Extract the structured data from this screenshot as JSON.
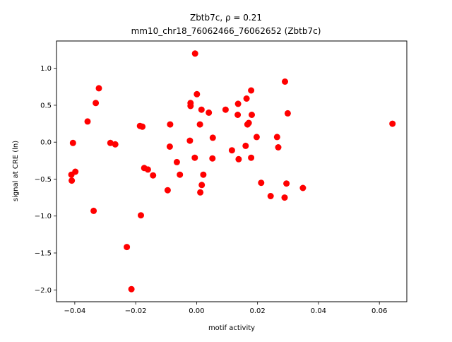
{
  "chart_data": {
    "type": "scatter",
    "title_line1": "Zbtb7c, ρ = 0.21",
    "title_line2": "mm10_chr18_76062466_76062652 (Zbtb7c)",
    "xlabel": "motif activity",
    "ylabel": "signal at CRE (ln)",
    "xlim": [
      -0.046,
      0.069
    ],
    "ylim": [
      -2.16,
      1.37
    ],
    "xticks": [
      -0.04,
      -0.02,
      0.0,
      0.02,
      0.04,
      0.06
    ],
    "xtick_labels": [
      "−0.04",
      "−0.02",
      "0.00",
      "0.02",
      "0.04",
      "0.06"
    ],
    "yticks": [
      -2.0,
      -1.5,
      -1.0,
      -0.5,
      0.0,
      0.5,
      1.0
    ],
    "ytick_labels": [
      "−2.0",
      "−1.5",
      "−1.0",
      "−0.5",
      "0.0",
      "0.5",
      "1.0"
    ],
    "grid": false,
    "marker_color": "#ff0000",
    "points": [
      {
        "x": -0.0406,
        "y": -0.01
      },
      {
        "x": -0.0411,
        "y": -0.44
      },
      {
        "x": -0.041,
        "y": -0.52
      },
      {
        "x": -0.0398,
        "y": -0.4
      },
      {
        "x": -0.0358,
        "y": 0.28
      },
      {
        "x": -0.0338,
        "y": -0.93
      },
      {
        "x": -0.0331,
        "y": 0.53
      },
      {
        "x": -0.0321,
        "y": 0.73
      },
      {
        "x": -0.0283,
        "y": -0.01
      },
      {
        "x": -0.0267,
        "y": -0.03
      },
      {
        "x": -0.0229,
        "y": -1.42
      },
      {
        "x": -0.0214,
        "y": -1.99
      },
      {
        "x": -0.0186,
        "y": 0.22
      },
      {
        "x": -0.0178,
        "y": 0.21
      },
      {
        "x": -0.0183,
        "y": -0.99
      },
      {
        "x": -0.0172,
        "y": -0.35
      },
      {
        "x": -0.016,
        "y": -0.37
      },
      {
        "x": -0.0143,
        "y": -0.45
      },
      {
        "x": -0.0095,
        "y": -0.65
      },
      {
        "x": -0.0087,
        "y": 0.24
      },
      {
        "x": -0.0088,
        "y": -0.06
      },
      {
        "x": -0.0065,
        "y": -0.27
      },
      {
        "x": -0.0055,
        "y": -0.44
      },
      {
        "x": -0.002,
        "y": 0.53
      },
      {
        "x": -0.002,
        "y": 0.49
      },
      {
        "x": -0.0022,
        "y": 0.02
      },
      {
        "x": -0.0005,
        "y": 1.2
      },
      {
        "x": 0.0001,
        "y": 0.65
      },
      {
        "x": 0.0011,
        "y": 0.24
      },
      {
        "x": 0.0016,
        "y": 0.44
      },
      {
        "x": -0.0006,
        "y": -0.21
      },
      {
        "x": 0.0022,
        "y": -0.44
      },
      {
        "x": 0.0017,
        "y": -0.58
      },
      {
        "x": 0.0012,
        "y": -0.68
      },
      {
        "x": 0.004,
        "y": 0.4
      },
      {
        "x": 0.0053,
        "y": 0.06
      },
      {
        "x": 0.0052,
        "y": -0.22
      },
      {
        "x": 0.0095,
        "y": 0.44
      },
      {
        "x": 0.0116,
        "y": -0.11
      },
      {
        "x": 0.0136,
        "y": 0.52
      },
      {
        "x": 0.0135,
        "y": 0.37
      },
      {
        "x": 0.0138,
        "y": -0.23
      },
      {
        "x": 0.0164,
        "y": 0.59
      },
      {
        "x": 0.0179,
        "y": 0.7
      },
      {
        "x": 0.0181,
        "y": 0.37
      },
      {
        "x": 0.0171,
        "y": 0.26
      },
      {
        "x": 0.0167,
        "y": 0.24
      },
      {
        "x": 0.0161,
        "y": -0.05
      },
      {
        "x": 0.0179,
        "y": -0.21
      },
      {
        "x": 0.0197,
        "y": 0.07
      },
      {
        "x": 0.0212,
        "y": -0.55
      },
      {
        "x": 0.0243,
        "y": -0.73
      },
      {
        "x": 0.0264,
        "y": 0.07
      },
      {
        "x": 0.0268,
        "y": -0.07
      },
      {
        "x": 0.029,
        "y": 0.82
      },
      {
        "x": 0.0299,
        "y": 0.39
      },
      {
        "x": 0.0295,
        "y": -0.56
      },
      {
        "x": 0.0289,
        "y": -0.75
      },
      {
        "x": 0.0349,
        "y": -0.62
      },
      {
        "x": 0.0643,
        "y": 0.25
      }
    ]
  }
}
